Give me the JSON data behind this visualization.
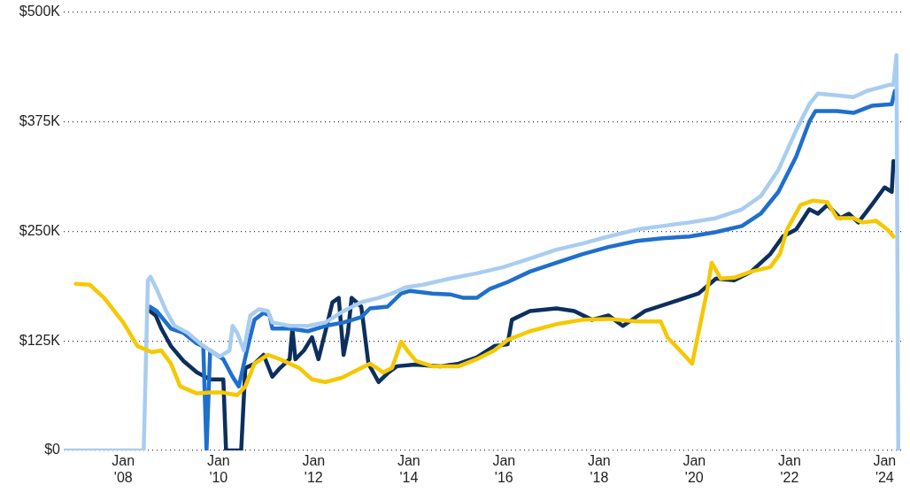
{
  "chart_data": {
    "type": "line",
    "xlim": [
      "2006-10-01",
      "2024-05-07"
    ],
    "xticks": [
      {
        "value": "2008-01",
        "label": "Jan '08"
      },
      {
        "value": "2010-01",
        "label": "Jan '10"
      },
      {
        "value": "2012-01",
        "label": "Jan '12"
      },
      {
        "value": "2014-01",
        "label": "Jan '14"
      },
      {
        "value": "2016-01",
        "label": "Jan '16"
      },
      {
        "value": "2018-01",
        "label": "Jan '18"
      },
      {
        "value": "2020-01",
        "label": "Jan '20"
      },
      {
        "value": "2022-01",
        "label": "Jan '22"
      },
      {
        "value": "2024-01",
        "label": "Jan '24"
      }
    ],
    "ylim": [
      0,
      500000
    ],
    "yticks": [
      {
        "value": 0,
        "label": "$0"
      },
      {
        "value": 125000,
        "label": "$125K"
      },
      {
        "value": 250000,
        "label": "$250K"
      },
      {
        "value": 375000,
        "label": "$375K"
      },
      {
        "value": 500000,
        "label": "$500K"
      }
    ],
    "grid": "y",
    "legend": false,
    "marker": "none",
    "line_style": "solid",
    "series": [
      {
        "color": "#f5c800",
        "x": [
          "2007-01-01",
          "2007-04-19",
          "2007-08-07",
          "2008-01-01",
          "2008-04-19",
          "2008-08-07",
          "2008-10-19",
          "2009-01-01",
          "2009-03-13",
          "2009-07-19",
          "2009-10-29",
          "2010-02-07",
          "2010-05-25",
          "2010-07-26",
          "2010-10-04",
          "2011-01-15",
          "2011-04-19",
          "2011-09-13",
          "2011-12-20",
          "2012-04-01",
          "2012-08-07",
          "2013-01-01",
          "2013-03-09",
          "2013-06-20",
          "2013-08-25",
          "2013-11-03",
          "2013-12-20",
          "2014-02-25",
          "2014-07-01",
          "2015-01-19",
          "2015-06-06",
          "2015-10-19",
          "2016-01-29",
          "2016-07-19",
          "2017-02-07",
          "2017-08-28",
          "2018-03-13",
          "2018-10-19",
          "2019-04-19",
          "2019-06-09",
          "2019-09-13",
          "2019-12-16",
          "2020-04-11",
          "2020-05-14",
          "2020-07-22",
          "2020-11-03",
          "2021-03-13",
          "2021-08-07",
          "2021-10-19",
          "2021-12-13",
          "2022-03-27",
          "2022-07-01",
          "2022-10-19",
          "2023-01-01",
          "2023-05-07",
          "2023-07-15",
          "2023-10-26",
          "2024-01-22",
          "2024-03-09"
        ],
        "values": [
          190000,
          189000,
          174000,
          146000,
          119000,
          112000,
          114000,
          99000,
          73000,
          65000,
          66000,
          66000,
          63000,
          73000,
          99000,
          109000,
          104000,
          94000,
          81000,
          78000,
          83000,
          94000,
          99000,
          89000,
          94000,
          124000,
          114000,
          102000,
          96000,
          96000,
          104000,
          114000,
          126000,
          136000,
          144000,
          149000,
          150000,
          147000,
          147000,
          129000,
          114000,
          99000,
          184000,
          214000,
          196000,
          197000,
          204000,
          209000,
          224000,
          252000,
          280000,
          285000,
          283000,
          265000,
          265000,
          260000,
          262000,
          252000,
          244000
        ]
      },
      {
        "color": "#a9cdf0",
        "x": [
          "2006-10-01",
          "2008-06-06",
          "2008-07-08",
          "2008-07-28",
          "2008-09-13",
          "2008-11-25",
          "2009-01-29",
          "2009-05-11",
          "2009-08-21",
          "2009-10-29",
          "2010-01-08",
          "2010-03-27",
          "2010-04-19",
          "2010-05-25",
          "2010-07-15",
          "2010-09-02",
          "2010-11-07",
          "2011-01-15",
          "2011-02-18",
          "2011-07-01",
          "2011-11-18",
          "2012-04-01",
          "2012-08-18",
          "2013-01-01",
          "2013-05-14",
          "2013-08-25",
          "2013-12-06",
          "2014-04-19",
          "2014-11-14",
          "2015-06-06",
          "2015-12-27",
          "2016-07-19",
          "2017-02-07",
          "2017-08-28",
          "2018-03-13",
          "2018-10-19",
          "2019-05-03",
          "2019-11-25",
          "2020-06-16",
          "2021-01-01",
          "2021-05-25",
          "2021-10-08",
          "2022-02-21",
          "2022-06-02",
          "2022-08-07",
          "2023-01-01",
          "2023-05-07",
          "2023-08-18",
          "2024-02-07",
          "2024-03-09",
          "2024-04-01",
          "2024-04-15"
        ],
        "values": [
          0,
          0,
          194000,
          198000,
          184000,
          159000,
          142000,
          134000,
          121000,
          114000,
          107000,
          114000,
          142000,
          134000,
          114000,
          154000,
          161000,
          159000,
          146000,
          142000,
          142000,
          146000,
          159000,
          169000,
          174000,
          179000,
          186000,
          189000,
          196000,
          202000,
          209000,
          219000,
          229000,
          236000,
          244000,
          252000,
          256000,
          260000,
          265000,
          275000,
          290000,
          320000,
          365000,
          395000,
          407000,
          405000,
          403000,
          410000,
          417000,
          417000,
          451000,
          0
        ]
      },
      {
        "color": "#1f6fce",
        "x": [
          "2008-07-22",
          "2008-09-13",
          "2009-01-01",
          "2009-04-08",
          "2009-07-19",
          "2009-09-06",
          "2009-10-01",
          "2009-10-29",
          "2010-02-07",
          "2010-04-19",
          "2010-06-06",
          "2010-08-07",
          "2010-10-04",
          "2010-12-13",
          "2011-01-29",
          "2011-02-18",
          "2011-07-01",
          "2011-11-18",
          "2012-04-01",
          "2012-08-18",
          "2013-01-01",
          "2013-03-09",
          "2013-07-22",
          "2013-11-03",
          "2014-01-12",
          "2014-07-01",
          "2014-11-14",
          "2015-02-25",
          "2015-06-06",
          "2015-09-13",
          "2016-01-29",
          "2016-07-19",
          "2017-02-07",
          "2017-08-28",
          "2018-03-13",
          "2018-10-19",
          "2019-05-03",
          "2019-11-25",
          "2020-06-16",
          "2021-01-01",
          "2021-05-25",
          "2021-10-08",
          "2022-02-21",
          "2022-06-02",
          "2022-07-19",
          "2023-01-01",
          "2023-05-07",
          "2023-09-24",
          "2024-02-25",
          "2024-03-20"
        ],
        "values": [
          164000,
          159000,
          139000,
          134000,
          122000,
          119000,
          0,
          114000,
          104000,
          84000,
          73000,
          114000,
          149000,
          157000,
          154000,
          139000,
          139000,
          136000,
          142000,
          146000,
          152000,
          162000,
          164000,
          179000,
          182000,
          179000,
          178000,
          174000,
          174000,
          184000,
          192000,
          204000,
          214000,
          224000,
          232000,
          239000,
          242000,
          244000,
          249000,
          256000,
          270000,
          295000,
          335000,
          375000,
          387000,
          387000,
          385000,
          393000,
          395000,
          410000
        ]
      },
      {
        "color": "#0d2f5e",
        "x": [
          "2008-07-22",
          "2008-09-06",
          "2008-10-19",
          "2009-01-01",
          "2009-04-08",
          "2009-07-19",
          "2009-10-29",
          "2010-02-07",
          "2010-02-28",
          "2010-06-24",
          "2010-07-26",
          "2010-10-04",
          "2010-12-13",
          "2011-02-18",
          "2011-04-19",
          "2011-07-01",
          "2011-07-22",
          "2011-08-14",
          "2011-10-19",
          "2011-12-20",
          "2012-02-07",
          "2012-04-01",
          "2012-05-25",
          "2012-07-12",
          "2012-08-18",
          "2012-09-20",
          "2012-10-19",
          "2013-01-01",
          "2013-02-25",
          "2013-05-14",
          "2013-07-22",
          "2013-10-01",
          "2014-02-14",
          "2014-09-06",
          "2015-01-19",
          "2015-06-06",
          "2015-10-19",
          "2016-01-29",
          "2016-03-02",
          "2016-07-19",
          "2017-02-07",
          "2017-06-24",
          "2017-11-07",
          "2018-03-13",
          "2018-07-01",
          "2018-12-20",
          "2019-07-12",
          "2020-02-03",
          "2020-06-16",
          "2020-11-03",
          "2021-03-13",
          "2021-08-07",
          "2021-11-11",
          "2022-02-21",
          "2022-06-02",
          "2022-08-07",
          "2022-10-19",
          "2023-01-26",
          "2023-04-01",
          "2023-06-13",
          "2023-09-24",
          "2024-01-01",
          "2024-02-25",
          "2024-03-09"
        ],
        "values": [
          159000,
          154000,
          139000,
          119000,
          102000,
          89000,
          81000,
          81000,
          0,
          0,
          94000,
          99000,
          109000,
          84000,
          94000,
          104000,
          139000,
          104000,
          114000,
          129000,
          104000,
          136000,
          169000,
          174000,
          109000,
          134000,
          174000,
          164000,
          99000,
          78000,
          88000,
          96000,
          98000,
          96000,
          99000,
          106000,
          119000,
          121000,
          149000,
          159000,
          162000,
          159000,
          149000,
          154000,
          142000,
          159000,
          169000,
          179000,
          196000,
          194000,
          204000,
          224000,
          244000,
          252000,
          275000,
          270000,
          280000,
          265000,
          270000,
          260000,
          280000,
          300000,
          295000,
          330000
        ]
      }
    ]
  }
}
